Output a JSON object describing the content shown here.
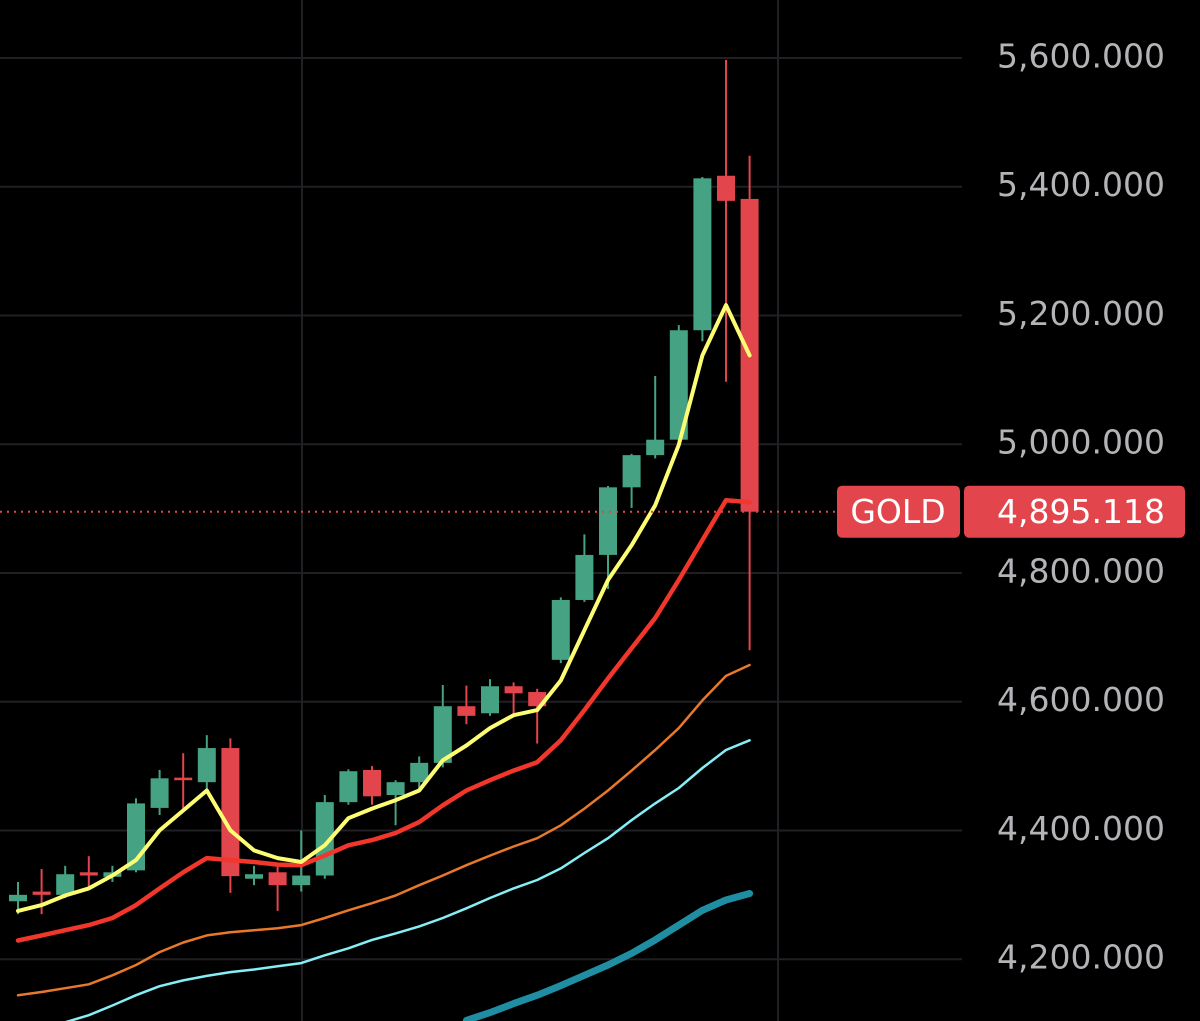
{
  "chart_data": {
    "type": "candlestick",
    "ylim": [
      4104,
      5690
    ],
    "yticks": [
      {
        "value": 4200,
        "label": "4,200.000"
      },
      {
        "value": 4400,
        "label": "4,400.000"
      },
      {
        "value": 4600,
        "label": "4,600.000"
      },
      {
        "value": 4800,
        "label": "4,800.000"
      },
      {
        "value": 5000,
        "label": "5,000.000"
      },
      {
        "value": 5200,
        "label": "5,200.000"
      },
      {
        "value": 5400,
        "label": "5,400.000"
      },
      {
        "value": 5600,
        "label": "5,600.000"
      }
    ],
    "grid": true,
    "up_color": "#45a283",
    "down_color": "#e2454b",
    "open": [
      4290,
      4305,
      4300,
      4335,
      4328,
      4338,
      4435,
      4482,
      4475,
      4528,
      4325,
      4335,
      4315,
      4330,
      4444,
      4494,
      4455,
      4475,
      4505,
      4593,
      4582,
      4624,
      4615,
      4665,
      4758,
      4828,
      4933,
      4983,
      5007,
      5177,
      5417,
      5381
    ],
    "high": [
      4320,
      4340,
      4345,
      4360,
      4345,
      4450,
      4494,
      4520,
      4548,
      4543,
      4345,
      4345,
      4400,
      4455,
      4495,
      4500,
      4478,
      4515,
      4626,
      4625,
      4635,
      4630,
      4620,
      4762,
      4860,
      4935,
      4985,
      5106,
      5185,
      5415,
      5597,
      5448
    ],
    "low": [
      4270,
      4270,
      4295,
      4310,
      4320,
      4335,
      4424,
      4430,
      4463,
      4303,
      4315,
      4275,
      4305,
      4325,
      4440,
      4440,
      4408,
      4465,
      4498,
      4565,
      4578,
      4580,
      4535,
      4660,
      4755,
      4775,
      4901,
      4978,
      5000,
      5160,
      5097,
      4680
    ],
    "close": [
      4300,
      4300,
      4332,
      4330,
      4335,
      4442,
      4481,
      4478,
      4528,
      4329,
      4332,
      4315,
      4330,
      4444,
      4492,
      4453,
      4475,
      4505,
      4593,
      4578,
      4624,
      4613,
      4593,
      4758,
      4828,
      4933,
      4983,
      5007,
      5177,
      5413,
      5378,
      4895.118
    ],
    "series": [
      {
        "color": "#1f8ea3",
        "line_width": 7,
        "values": [
          null,
          null,
          null,
          null,
          null,
          null,
          null,
          null,
          null,
          null,
          null,
          null,
          null,
          null,
          null,
          null,
          null,
          null,
          null,
          4105,
          4117,
          4131,
          4144,
          4159,
          4175,
          4191,
          4209,
          4230,
          4253,
          4276,
          4292,
          4302
        ]
      },
      {
        "color": "#86eef5",
        "line_width": 2.5,
        "values": [
          null,
          null,
          4102,
          4113,
          4128,
          4144,
          4158,
          4167,
          4174,
          4180,
          4184,
          4189,
          4194,
          4206,
          4217,
          4230,
          4240,
          4251,
          4264,
          4279,
          4295,
          4310,
          4323,
          4341,
          4365,
          4388,
          4416,
          4442,
          4466,
          4497,
          4525,
          4540
        ]
      },
      {
        "color": "#e8782a",
        "line_width": 2.5,
        "values": [
          4144,
          4149,
          4155,
          4161,
          4175,
          4191,
          4211,
          4226,
          4237,
          4242,
          4245,
          4248,
          4253,
          4264,
          4276,
          4287,
          4299,
          4315,
          4330,
          4346,
          4361,
          4375,
          4388,
          4408,
          4434,
          4462,
          4493,
          4525,
          4559,
          4602,
          4640,
          4657
        ]
      },
      {
        "color": "#f2362b",
        "line_width": 4.5,
        "values": [
          4229,
          4237,
          4245,
          4253,
          4264,
          4284,
          4310,
          4335,
          4357,
          4354,
          4351,
          4347,
          4346,
          4361,
          4377,
          4385,
          4396,
          4413,
          4439,
          4462,
          4478,
          4493,
          4506,
          4540,
          4587,
          4636,
          4683,
          4730,
          4789,
          4851,
          4913,
          4910
        ]
      },
      {
        "color": "#fdfd74",
        "line_width": 4,
        "values": [
          4275,
          4284,
          4299,
          4310,
          4330,
          4354,
          4400,
          4431,
          4462,
          4400,
          4369,
          4357,
          4351,
          4377,
          4419,
          4434,
          4447,
          4462,
          4509,
          4532,
          4559,
          4579,
          4587,
          4633,
          4711,
          4789,
          4843,
          4905,
          4999,
          5138,
          5216,
          5138
        ]
      }
    ],
    "last_price": {
      "name": "GOLD",
      "value": 4895.118,
      "label": "4,895.118",
      "color": "#e2454b"
    }
  }
}
